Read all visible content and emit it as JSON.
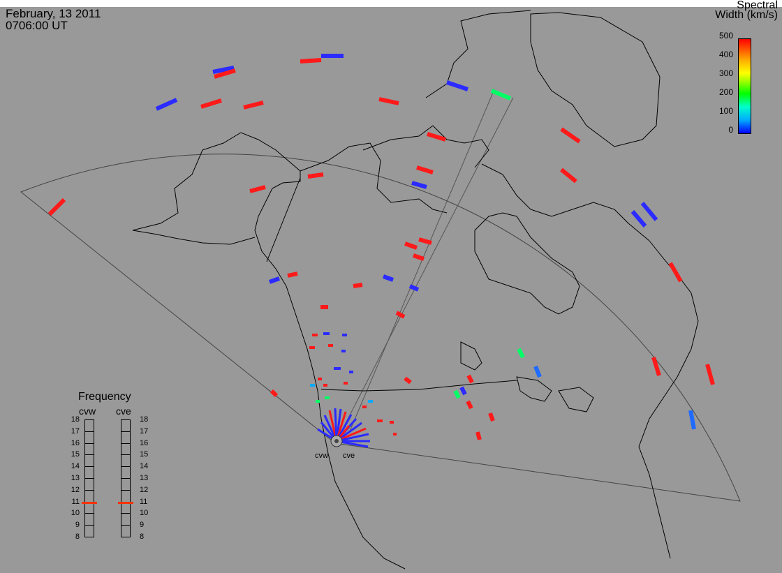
{
  "header": {
    "date": "February, 13 2011",
    "time": "0706:00 UT"
  },
  "colorbar": {
    "title_line1": "Spectral",
    "title_line2": "Width (km/s)",
    "ticks": [
      "500",
      "400",
      "300",
      "200",
      "100",
      "0"
    ],
    "colors": [
      "#0000ff",
      "#00aaff",
      "#00ffcc",
      "#00ff00",
      "#aaff00",
      "#ffff00",
      "#ffaa00",
      "#ff0000"
    ]
  },
  "frequency_panel": {
    "title": "Frequency",
    "radars": [
      "cvw",
      "cve"
    ],
    "scale_labels": [
      "18",
      "17",
      "16",
      "15",
      "14",
      "13",
      "12",
      "11",
      "10",
      "9",
      "8"
    ],
    "cvw_frequency_mhz": 10.9,
    "cve_frequency_mhz": 10.9,
    "marker_color": "#ff3300"
  },
  "map": {
    "background_color": "#999999",
    "radar_sites": [
      "cvw",
      "cve"
    ],
    "echo_colors": {
      "low": "#2b2bff",
      "mid_low": "#00aaff",
      "mid": "#00ff66",
      "high": "#ff1a1a"
    }
  }
}
